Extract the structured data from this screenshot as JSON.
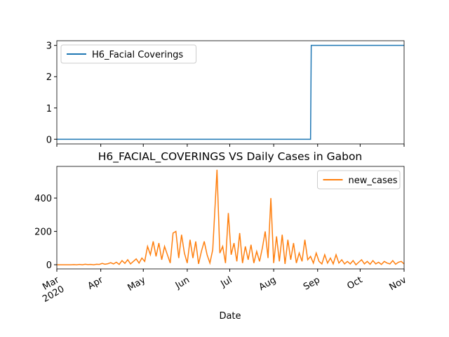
{
  "chart_data": [
    {
      "type": "line",
      "legend": "upper left",
      "xlim": [
        0,
        245
      ],
      "ylim": [
        -0.15,
        3.15
      ],
      "yticks": [
        0,
        1,
        2,
        3
      ],
      "series": [
        {
          "name": "H6_Facial Coverings",
          "color": "#1f77b4",
          "x": [
            0,
            179,
            179.5,
            245
          ],
          "values": [
            0,
            0,
            3,
            3
          ]
        }
      ]
    },
    {
      "type": "line",
      "title": "H6_FACIAL_COVERINGS VS Daily Cases in Gabon",
      "xlabel": "Date",
      "legend": "upper right",
      "xlim": [
        0,
        245
      ],
      "ylim": [
        -25,
        590
      ],
      "yticks": [
        0,
        200,
        400
      ],
      "xticks": [
        {
          "value": 0,
          "label": "Mar\n2020"
        },
        {
          "value": 31,
          "label": "Apr"
        },
        {
          "value": 61,
          "label": "May"
        },
        {
          "value": 92,
          "label": "Jun"
        },
        {
          "value": 122,
          "label": "Jul"
        },
        {
          "value": 153,
          "label": "Aug"
        },
        {
          "value": 184,
          "label": "Sep"
        },
        {
          "value": 214,
          "label": "Oct"
        },
        {
          "value": 245,
          "label": "Nov"
        }
      ],
      "series": [
        {
          "name": "new_cases",
          "color": "#ff7f0e",
          "x": [
            0,
            2,
            4,
            6,
            8,
            10,
            12,
            14,
            16,
            18,
            20,
            22,
            24,
            26,
            28,
            30,
            32,
            34,
            36,
            38,
            40,
            42,
            44,
            46,
            48,
            50,
            52,
            54,
            56,
            58,
            60,
            62,
            64,
            66,
            68,
            70,
            72,
            74,
            76,
            78,
            80,
            82,
            84,
            86,
            88,
            90,
            92,
            94,
            96,
            98,
            100,
            102,
            104,
            106,
            108,
            110,
            113,
            115,
            117,
            119,
            121,
            123,
            125,
            127,
            129,
            131,
            133,
            135,
            137,
            139,
            141,
            143,
            145,
            147,
            149,
            151,
            153,
            155,
            157,
            159,
            161,
            163,
            165,
            167,
            169,
            171,
            173,
            175,
            177,
            179,
            181,
            183,
            185,
            187,
            189,
            191,
            193,
            195,
            197,
            199,
            201,
            203,
            205,
            207,
            209,
            211,
            213,
            215,
            217,
            219,
            221,
            223,
            225,
            227,
            229,
            231,
            233,
            235,
            237,
            239,
            241,
            243,
            245
          ],
          "values": [
            0,
            0,
            0,
            0,
            0,
            0,
            1,
            0,
            2,
            0,
            3,
            1,
            2,
            0,
            3,
            2,
            8,
            3,
            6,
            12,
            5,
            15,
            2,
            25,
            8,
            30,
            5,
            20,
            35,
            10,
            40,
            20,
            110,
            60,
            140,
            50,
            130,
            30,
            110,
            60,
            10,
            190,
            200,
            40,
            180,
            70,
            10,
            150,
            40,
            140,
            5,
            80,
            140,
            60,
            10,
            90,
            570,
            70,
            110,
            10,
            310,
            60,
            130,
            20,
            190,
            10,
            110,
            30,
            120,
            10,
            80,
            20,
            100,
            200,
            40,
            400,
            10,
            170,
            20,
            180,
            5,
            150,
            30,
            130,
            10,
            70,
            20,
            150,
            30,
            50,
            10,
            70,
            20,
            5,
            60,
            10,
            40,
            5,
            60,
            10,
            30,
            5,
            20,
            5,
            25,
            0,
            15,
            30,
            5,
            20,
            3,
            25,
            5,
            15,
            2,
            20,
            10,
            5,
            25,
            3,
            15,
            20,
            5
          ]
        }
      ]
    }
  ]
}
